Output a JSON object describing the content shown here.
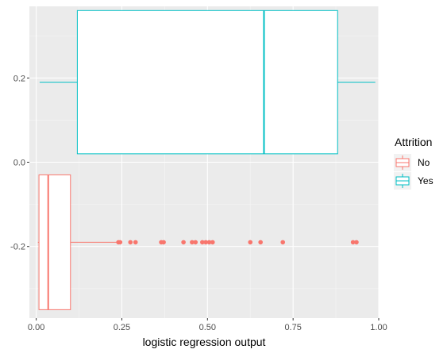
{
  "chart_data": {
    "type": "boxplot",
    "orientation": "horizontal",
    "xlabel": "logistic regression output",
    "ylabel": "",
    "xlim": [
      -0.02,
      1.0
    ],
    "ylim": [
      -0.37,
      0.37
    ],
    "x_ticks": [
      0.0,
      0.25,
      0.5,
      0.75,
      1.0
    ],
    "x_tick_labels": [
      "0.00",
      "0.25",
      "0.50",
      "0.75",
      "1.00"
    ],
    "y_ticks": [
      -0.2,
      0.0,
      0.2
    ],
    "y_tick_labels": [
      "-0.2",
      "0.0",
      "0.2"
    ],
    "grid": true,
    "background": "#ebebeb",
    "legend": {
      "title": "Attrition",
      "position": "right",
      "entries": [
        {
          "label": "No",
          "color": "#f8766d"
        },
        {
          "label": "Yes",
          "color": "#00bfc4"
        }
      ]
    },
    "series": [
      {
        "name": "No",
        "color": "#f8766d",
        "y_center": -0.19,
        "y_half_height": 0.16,
        "whisker_low": 0.005,
        "q1": 0.008,
        "median": 0.035,
        "q3": 0.1,
        "whisker_high": 0.24,
        "outliers": [
          0.24,
          0.245,
          0.275,
          0.29,
          0.365,
          0.372,
          0.43,
          0.455,
          0.465,
          0.485,
          0.495,
          0.505,
          0.515,
          0.625,
          0.655,
          0.72,
          0.925,
          0.935
        ]
      },
      {
        "name": "Yes",
        "color": "#00bfc4",
        "y_center": 0.19,
        "y_half_height": 0.17,
        "whisker_low": 0.01,
        "q1": 0.12,
        "median": 0.665,
        "q3": 0.88,
        "whisker_high": 0.99,
        "outliers": []
      }
    ]
  }
}
